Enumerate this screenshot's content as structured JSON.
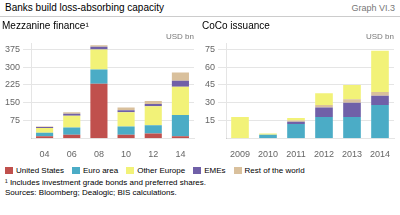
{
  "title": "Banks build loss-absorbing capacity",
  "annotations": [
    "Graph VI.3",
    "¹ Includes investment grade bonds and preferred shares.",
    "Sources: Bloomberg; Dealogic; BIS calculations."
  ],
  "chart_data": [
    {
      "type": "bar",
      "stacked": true,
      "title": "Mezzanine finance¹",
      "ylabel": "USD bn",
      "categories": [
        "04",
        "06",
        "08",
        "10",
        "12",
        "14"
      ],
      "series": [
        {
          "name": "United States",
          "color": "#c0504d",
          "values": [
            8,
            15,
            230,
            15,
            20,
            8
          ]
        },
        {
          "name": "Euro area",
          "color": "#4bacc6",
          "values": [
            15,
            30,
            60,
            35,
            35,
            90
          ]
        },
        {
          "name": "Other Europe",
          "color": "#f2f278",
          "values": [
            20,
            50,
            85,
            60,
            80,
            120
          ]
        },
        {
          "name": "EMEs",
          "color": "#7060a8",
          "values": [
            4,
            8,
            12,
            8,
            10,
            25
          ]
        },
        {
          "name": "Rest of the world",
          "color": "#d9c09c",
          "values": [
            3,
            7,
            6,
            12,
            12,
            35
          ]
        }
      ],
      "ylim": [
        0,
        400
      ],
      "yticks": [
        75,
        150,
        225,
        300,
        375
      ],
      "grid": true,
      "legend": "bottom"
    },
    {
      "type": "bar",
      "stacked": true,
      "title": "CoCo issuance",
      "ylabel": "USD bn",
      "categories": [
        "2009",
        "2010",
        "2011",
        "2012",
        "2013",
        "2014"
      ],
      "series": [
        {
          "name": "Euro area",
          "color": "#4bacc6",
          "values": [
            0,
            3,
            12,
            18,
            18,
            28
          ]
        },
        {
          "name": "EMEs",
          "color": "#7060a8",
          "values": [
            0,
            0,
            2,
            8,
            12,
            8
          ]
        },
        {
          "name": "Rest of the world",
          "color": "#d9c09c",
          "values": [
            0,
            0,
            1,
            2,
            3,
            3
          ]
        },
        {
          "name": "Other Europe",
          "color": "#f2f278",
          "values": [
            18,
            1,
            2,
            10,
            12,
            35
          ]
        }
      ],
      "ylim": [
        0,
        80
      ],
      "yticks": [
        15,
        30,
        45,
        60,
        75
      ],
      "grid": true
    }
  ]
}
